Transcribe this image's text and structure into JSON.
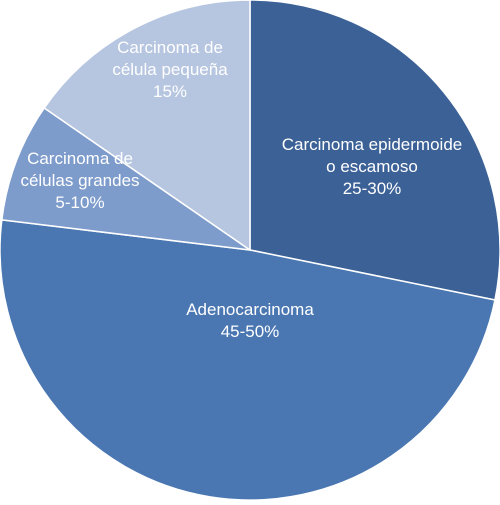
{
  "chart_data": {
    "type": "pie",
    "title": "",
    "slices": [
      {
        "lines": [
          "Carcinoma epidermoide",
          "o escamoso",
          "25-30%"
        ],
        "value": 27.5,
        "color": "#3b6196",
        "text_color": "#ffffff"
      },
      {
        "lines": [
          "Adenocarcinoma",
          "45-50%"
        ],
        "value": 47.5,
        "color": "#4a77b2",
        "text_color": "#ffffff"
      },
      {
        "lines": [
          "Carcinoma de",
          "células grandes",
          "5-10%"
        ],
        "value": 7.5,
        "color": "#7d9bcb",
        "text_color": "#ffffff"
      },
      {
        "lines": [
          "Carcinoma de",
          "célula pequeña",
          "15%"
        ],
        "value": 15,
        "color": "#b6c5e0",
        "text_color": "#ffffff"
      }
    ]
  }
}
